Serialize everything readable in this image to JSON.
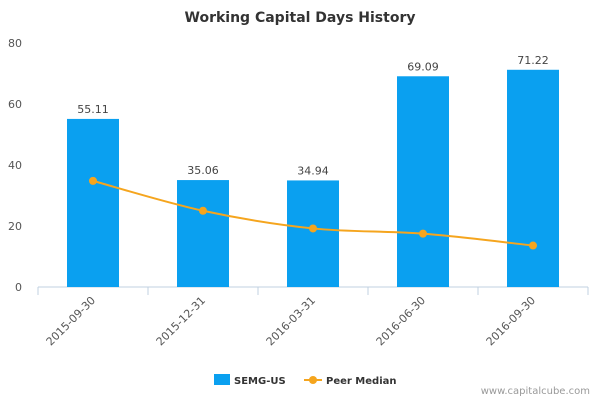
{
  "chart_data": {
    "type": "bar",
    "title": "Working Capital Days History",
    "categories": [
      "2015-09-30",
      "2015-12-31",
      "2016-03-31",
      "2016-06-30",
      "2016-09-30"
    ],
    "ylim": [
      0,
      80
    ],
    "yticks": [
      0,
      20,
      40,
      60,
      80
    ],
    "grid": false,
    "legend_position": "bottom-center",
    "series": [
      {
        "name": "SEMG-US",
        "type": "bar",
        "color": "#0aa0f0",
        "values": [
          55.11,
          35.06,
          34.94,
          69.09,
          71.22
        ],
        "labels": [
          "55.11",
          "35.06",
          "34.94",
          "69.09",
          "71.22"
        ]
      },
      {
        "name": "Peer Median",
        "type": "line",
        "color": "#f5a51e",
        "values": [
          34.8,
          25.0,
          19.2,
          17.5,
          13.6
        ]
      }
    ]
  },
  "credit": "www.capitalcube.com"
}
